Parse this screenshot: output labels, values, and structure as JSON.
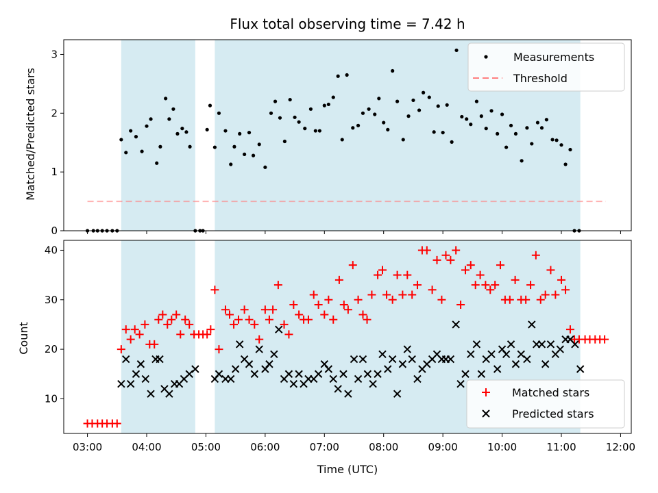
{
  "chart_data": [
    {
      "type": "scatter",
      "title": "Flux total observing time = 7.42 h",
      "ylabel": "Matched/Predicted stars",
      "ylim": [
        0,
        3.25
      ],
      "xlim": [
        2.6,
        12.18
      ],
      "yticks": [
        0,
        1,
        2,
        3
      ],
      "shaded_intervals": [
        [
          3.57,
          4.82
        ],
        [
          5.15,
          11.32
        ]
      ],
      "shade_color": "#add8e6",
      "threshold": {
        "name": "Threshold",
        "value": 0.5,
        "x_range": [
          3.0,
          11.75
        ],
        "color": "#ff7f7f"
      },
      "legend": {
        "position": "upper right",
        "entries": [
          "Measurements",
          "Threshold"
        ]
      },
      "series": [
        {
          "name": "Measurements",
          "color": "#000000",
          "x": [
            3.0,
            3.1,
            3.17,
            3.25,
            3.33,
            3.42,
            3.5,
            3.57,
            3.65,
            3.73,
            3.82,
            3.92,
            4.0,
            4.07,
            4.17,
            4.23,
            4.32,
            4.38,
            4.45,
            4.52,
            4.6,
            4.67,
            4.73,
            4.82,
            4.9,
            4.95,
            5.02,
            5.07,
            5.15,
            5.22,
            5.33,
            5.42,
            5.48,
            5.57,
            5.65,
            5.73,
            5.8,
            5.9,
            6.0,
            6.1,
            6.17,
            6.25,
            6.33,
            6.42,
            6.5,
            6.57,
            6.67,
            6.77,
            6.85,
            6.92,
            7.0,
            7.07,
            7.15,
            7.23,
            7.3,
            7.38,
            7.48,
            7.57,
            7.65,
            7.75,
            7.85,
            7.92,
            8.0,
            8.07,
            8.15,
            8.23,
            8.33,
            8.42,
            8.5,
            8.6,
            8.67,
            8.77,
            8.85,
            8.92,
            9.0,
            9.07,
            9.15,
            9.23,
            9.32,
            9.4,
            9.47,
            9.57,
            9.65,
            9.73,
            9.82,
            9.92,
            10.0,
            10.07,
            10.15,
            10.23,
            10.33,
            10.42,
            10.5,
            10.6,
            10.67,
            10.75,
            10.85,
            10.92,
            11.0,
            11.07,
            11.15,
            11.22,
            11.3
          ],
          "y": [
            0,
            0,
            0,
            0,
            0,
            0,
            0,
            1.55,
            1.33,
            1.7,
            1.6,
            1.35,
            1.78,
            1.9,
            1.15,
            1.43,
            2.25,
            1.9,
            2.07,
            1.65,
            1.74,
            1.68,
            1.43,
            0,
            0,
            0,
            1.72,
            2.13,
            1.42,
            2.0,
            1.7,
            1.13,
            1.43,
            1.65,
            1.3,
            1.67,
            1.28,
            1.47,
            1.08,
            2.0,
            2.2,
            1.92,
            1.52,
            2.23,
            1.93,
            1.85,
            1.74,
            2.07,
            1.7,
            1.7,
            2.13,
            2.15,
            2.27,
            2.63,
            1.55,
            2.65,
            1.75,
            1.79,
            2.0,
            2.07,
            1.98,
            2.25,
            1.84,
            1.72,
            2.72,
            2.2,
            1.55,
            1.95,
            2.22,
            2.05,
            2.35,
            2.27,
            1.68,
            2.12,
            1.67,
            2.14,
            1.51,
            3.07,
            1.94,
            1.9,
            1.81,
            2.2,
            1.95,
            1.74,
            2.04,
            1.65,
            1.98,
            1.42,
            1.79,
            1.65,
            1.19,
            1.75,
            1.48,
            1.84,
            1.75,
            1.89,
            1.55,
            1.54,
            1.46,
            1.13,
            1.38,
            0,
            0
          ]
        }
      ]
    },
    {
      "type": "scatter",
      "xlabel": "Time (UTC)",
      "ylabel": "Count",
      "ylim": [
        3,
        42
      ],
      "xlim": [
        2.6,
        12.18
      ],
      "yticks": [
        10,
        20,
        30,
        40
      ],
      "xticks": [
        3,
        4,
        5,
        6,
        7,
        8,
        9,
        10,
        11,
        12
      ],
      "xtick_labels": [
        "03:00",
        "04:00",
        "05:00",
        "06:00",
        "07:00",
        "08:00",
        "09:00",
        "10:00",
        "11:00",
        "12:00"
      ],
      "shaded_intervals": [
        [
          3.57,
          4.82
        ],
        [
          5.15,
          11.32
        ]
      ],
      "shade_color": "#add8e6",
      "legend": {
        "position": "lower right",
        "entries": [
          "Matched stars",
          "Predicted stars"
        ]
      },
      "series": [
        {
          "name": "Matched stars",
          "marker": "+",
          "color": "#ff0000",
          "x": [
            3.0,
            3.08,
            3.17,
            3.25,
            3.33,
            3.42,
            3.5,
            3.57,
            3.65,
            3.73,
            3.8,
            3.88,
            3.97,
            4.05,
            4.13,
            4.2,
            4.27,
            4.35,
            4.42,
            4.5,
            4.57,
            4.65,
            4.72,
            4.8,
            4.88,
            4.95,
            5.02,
            5.08,
            5.15,
            5.22,
            5.33,
            5.4,
            5.47,
            5.55,
            5.65,
            5.73,
            5.82,
            5.9,
            6.0,
            6.07,
            6.13,
            6.22,
            6.32,
            6.4,
            6.48,
            6.57,
            6.65,
            6.73,
            6.82,
            6.9,
            7.0,
            7.07,
            7.15,
            7.25,
            7.33,
            7.4,
            7.48,
            7.57,
            7.65,
            7.72,
            7.8,
            7.9,
            7.98,
            8.05,
            8.15,
            8.23,
            8.32,
            8.4,
            8.48,
            8.57,
            8.65,
            8.73,
            8.82,
            8.9,
            8.98,
            9.05,
            9.13,
            9.22,
            9.3,
            9.38,
            9.47,
            9.55,
            9.63,
            9.72,
            9.8,
            9.88,
            9.97,
            10.05,
            10.13,
            10.22,
            10.32,
            10.4,
            10.48,
            10.57,
            10.65,
            10.73,
            10.82,
            10.9,
            11.0,
            11.07,
            11.15,
            11.22,
            11.3,
            11.4,
            11.48,
            11.57,
            11.65,
            11.73
          ],
          "y": [
            5,
            5,
            5,
            5,
            5,
            5,
            5,
            20,
            24,
            22,
            24,
            23,
            25,
            21,
            21,
            26,
            27,
            25,
            26,
            27,
            23,
            26,
            25,
            23,
            23,
            23,
            23,
            24,
            32,
            20,
            28,
            27,
            25,
            26,
            28,
            26,
            25,
            22,
            28,
            26,
            28,
            33,
            25,
            23,
            29,
            27,
            26,
            26,
            31,
            29,
            27,
            30,
            26,
            34,
            29,
            28,
            37,
            30,
            27,
            26,
            31,
            35,
            36,
            31,
            30,
            35,
            31,
            35,
            31,
            33,
            40,
            40,
            32,
            38,
            30,
            39,
            38,
            40,
            29,
            36,
            37,
            33,
            35,
            33,
            32,
            33,
            37,
            30,
            30,
            34,
            30,
            30,
            33,
            39,
            30,
            31,
            36,
            31,
            34,
            32,
            24,
            22,
            22,
            22,
            22,
            22,
            22,
            22
          ]
        },
        {
          "name": "Predicted stars",
          "marker": "x",
          "color": "#000000",
          "x": [
            3.57,
            3.65,
            3.73,
            3.82,
            3.9,
            3.98,
            4.07,
            4.15,
            4.22,
            4.3,
            4.38,
            4.47,
            4.55,
            4.63,
            4.72,
            4.82,
            5.15,
            5.22,
            5.33,
            5.42,
            5.5,
            5.57,
            5.65,
            5.73,
            5.82,
            5.9,
            6.0,
            6.07,
            6.15,
            6.23,
            6.32,
            6.4,
            6.48,
            6.57,
            6.65,
            6.73,
            6.82,
            6.9,
            7.0,
            7.07,
            7.15,
            7.23,
            7.32,
            7.4,
            7.5,
            7.57,
            7.65,
            7.73,
            7.82,
            7.9,
            7.98,
            8.07,
            8.15,
            8.23,
            8.32,
            8.4,
            8.48,
            8.57,
            8.65,
            8.73,
            8.82,
            8.9,
            8.98,
            9.05,
            9.13,
            9.22,
            9.3,
            9.38,
            9.47,
            9.57,
            9.65,
            9.73,
            9.82,
            9.92,
            10.0,
            10.07,
            10.15,
            10.23,
            10.32,
            10.42,
            10.5,
            10.58,
            10.67,
            10.73,
            10.82,
            10.9,
            10.98,
            11.07,
            11.15,
            11.23,
            11.32
          ],
          "y": [
            13,
            18,
            13,
            15,
            17,
            14,
            11,
            18,
            18,
            12,
            11,
            13,
            13,
            14,
            15,
            16,
            14,
            15,
            14,
            14,
            16,
            21,
            18,
            17,
            15,
            20,
            16,
            17,
            19,
            24,
            14,
            15,
            13,
            15,
            13,
            14,
            14,
            15,
            17,
            16,
            14,
            12,
            15,
            11,
            18,
            14,
            18,
            15,
            13,
            15,
            19,
            16,
            18,
            11,
            17,
            20,
            18,
            14,
            16,
            17,
            18,
            19,
            18,
            18,
            18,
            25,
            13,
            15,
            19,
            21,
            15,
            18,
            19,
            16,
            20,
            19,
            21,
            17,
            19,
            18,
            25,
            21,
            21,
            17,
            21,
            19,
            20,
            22,
            22,
            21,
            16
          ]
        }
      ]
    }
  ]
}
